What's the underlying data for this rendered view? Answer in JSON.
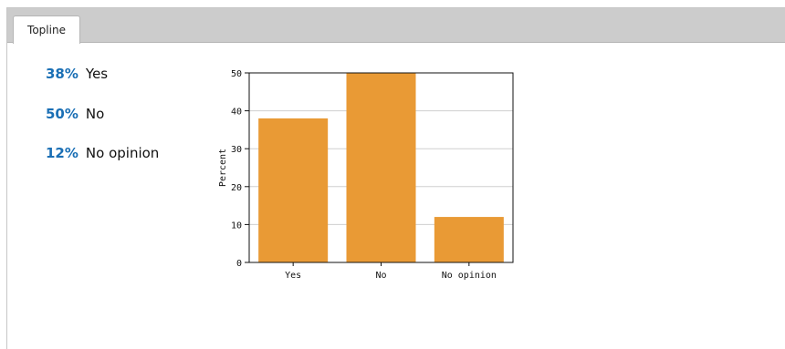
{
  "tabs": [
    {
      "label": "Topline"
    }
  ],
  "results": [
    {
      "percent": "38%",
      "label": "Yes"
    },
    {
      "percent": "50%",
      "label": "No"
    },
    {
      "percent": "12%",
      "label": "No opinion"
    }
  ],
  "chart_data": {
    "type": "bar",
    "categories": [
      "Yes",
      "No",
      "No opinion"
    ],
    "values": [
      38,
      50,
      12
    ],
    "title": "",
    "xlabel": "",
    "ylabel": "Percent",
    "ylim": [
      0,
      50
    ],
    "yticks": [
      0,
      10,
      20,
      30,
      40,
      50
    ],
    "grid": true,
    "bar_color": "#e99a35"
  }
}
